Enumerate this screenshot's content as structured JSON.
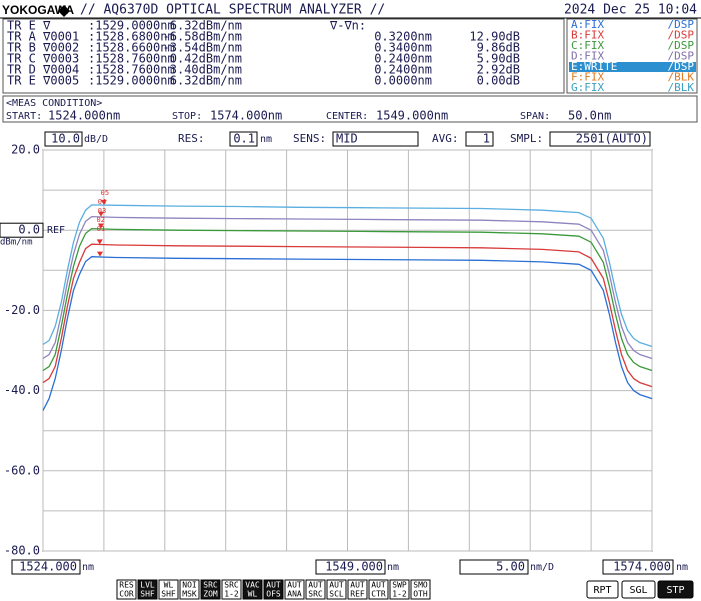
{
  "header": {
    "brand": "YOKOGAWA",
    "title": "// AQ6370D OPTICAL SPECTRUM ANALYZER //",
    "datetime": "2024 Dec 25 10:04"
  },
  "marker_table": {
    "active": [
      "TR E ∇",
      ":1529.0000nm",
      "6.32dBm/nm",
      "∇-∇n:"
    ],
    "rows": [
      [
        "TR A ∇0001",
        ":1528.6800nm",
        "-6.58dBm/nm",
        "0.3200nm",
        "12.90dB"
      ],
      [
        "TR B ∇0002",
        ":1528.6600nm",
        "-3.54dBm/nm",
        "0.3400nm",
        "9.86dB"
      ],
      [
        "TR C ∇0003",
        ":1528.7600nm",
        "0.42dBm/nm",
        "0.2400nm",
        "5.90dB"
      ],
      [
        "TR D ∇0004",
        ":1528.7600nm",
        "3.40dBm/nm",
        "0.2400nm",
        "2.92dB"
      ],
      [
        "TR E ∇0005",
        ":1529.0000nm",
        "6.32dBm/nm",
        "0.0000nm",
        "0.00dB"
      ]
    ]
  },
  "trace_status": [
    {
      "trace": "A:FIX",
      "mode": "/DSP",
      "color": "#2a6fd6"
    },
    {
      "trace": "B:FIX",
      "mode": "/DSP",
      "color": "#d93a3a"
    },
    {
      "trace": "C:FIX",
      "mode": "/DSP",
      "color": "#3a9a3a"
    },
    {
      "trace": "D:FIX",
      "mode": "/DSP",
      "color": "#7f6fa8"
    },
    {
      "trace": "E:WRITE",
      "mode": "/DSP",
      "color": "#2b8fd0",
      "active": true
    },
    {
      "trace": "F:FIX",
      "mode": "/BLK",
      "color": "#e07a20"
    },
    {
      "trace": "G:FIX",
      "mode": "/BLK",
      "color": "#3aa0c0"
    }
  ],
  "meas_condition": {
    "title": "<MEAS CONDITION>",
    "start_label": "START:",
    "start": "1524.000nm",
    "stop_label": "STOP:",
    "stop": "1574.000nm",
    "center_label": "CENTER:",
    "center": "1549.000nm",
    "span_label": "SPAN:",
    "span": "50.0nm"
  },
  "settings": {
    "scale": "10.0",
    "scale_unit": "dB/D",
    "res_label": "RES:",
    "res": "0.1",
    "res_unit": "nm",
    "sens_label": "SENS:",
    "sens": "MID",
    "avg_label": "AVG:",
    "avg": "1",
    "smpl_label": "SMPL:",
    "smpl": "2501(AUTO)"
  },
  "chart_data": {
    "type": "line",
    "ref_label": "REF",
    "y_unit": "dBm/nm",
    "xlim": [
      1524,
      1574
    ],
    "ylim": [
      -80,
      20
    ],
    "yticks": [
      {
        "value": 20,
        "label": "20.0"
      },
      {
        "value": 0,
        "label": "0.0"
      },
      {
        "value": -20,
        "label": "-20.0"
      },
      {
        "value": -40,
        "label": "-40.0"
      },
      {
        "value": -60,
        "label": "-60.0"
      },
      {
        "value": -80,
        "label": "-80.0"
      }
    ],
    "ygrid": [
      10,
      -10,
      -30,
      -50,
      -70
    ],
    "xticks": [
      {
        "value": 1524,
        "label": "1524.000"
      },
      {
        "value": 1549,
        "label": "1549.000"
      },
      {
        "value": 1574,
        "label": "1574.000"
      }
    ],
    "xgrid": [
      1529,
      1534,
      1539,
      1544,
      1554,
      1559,
      1564,
      1569
    ],
    "x_unit": "nm",
    "x_div": "5.00",
    "x_div_unit": "nm/D",
    "grid": true,
    "x": [
      1524,
      1524.5,
      1525,
      1525.5,
      1526,
      1526.5,
      1527,
      1527.5,
      1528,
      1530,
      1535,
      1540,
      1545,
      1550,
      1555,
      1560,
      1565,
      1568,
      1569,
      1570,
      1570.5,
      1571,
      1571.5,
      1572,
      1572.5,
      1573,
      1574
    ],
    "series": [
      {
        "color": "#2a6fd6",
        "values": [
          -45,
          -42,
          -37,
          -30,
          -22,
          -15,
          -11,
          -7.8,
          -6.6,
          -6.8,
          -7.0,
          -7.1,
          -7.2,
          -7.3,
          -7.4,
          -7.5,
          -7.9,
          -8.5,
          -10,
          -15,
          -21,
          -28,
          -34,
          -38,
          -40,
          -41,
          -42
        ]
      },
      {
        "color": "#d93a3a",
        "values": [
          -38,
          -37,
          -34,
          -27,
          -19,
          -12,
          -8,
          -4.6,
          -3.5,
          -3.7,
          -3.9,
          -4.0,
          -4.1,
          -4.2,
          -4.3,
          -4.4,
          -4.8,
          -5.4,
          -7,
          -12,
          -18,
          -25,
          -31,
          -35,
          -37,
          -38,
          -39
        ]
      },
      {
        "color": "#3a9a3a",
        "values": [
          -35,
          -34,
          -31,
          -24,
          -16,
          -9,
          -4,
          -0.8,
          0.4,
          0.2,
          0.0,
          -0.1,
          -0.2,
          -0.3,
          -0.4,
          -0.5,
          -0.9,
          -1.5,
          -3,
          -8,
          -14,
          -21,
          -27,
          -31,
          -33,
          -34,
          -35
        ]
      },
      {
        "color": "#8f84bf",
        "values": [
          -32,
          -31,
          -28,
          -21,
          -13,
          -6,
          -1,
          2.2,
          3.4,
          3.2,
          3.0,
          2.9,
          2.8,
          2.7,
          2.6,
          2.5,
          2.1,
          1.5,
          0,
          -5,
          -11,
          -18,
          -24,
          -28,
          -30,
          -31,
          -32
        ]
      },
      {
        "color": "#5aaee0",
        "values": [
          -28.5,
          -27.5,
          -24,
          -18,
          -10,
          -3,
          2,
          5,
          6.3,
          6.2,
          6.0,
          5.9,
          5.7,
          5.6,
          5.5,
          5.4,
          5.0,
          4.4,
          3.0,
          -2,
          -8,
          -15,
          -21,
          -25,
          -27,
          -28,
          -29
        ]
      }
    ],
    "markers": [
      {
        "label": "05",
        "x": 1529.0,
        "y": 6.32
      },
      {
        "label": "04",
        "x": 1528.76,
        "y": 3.4
      },
      {
        "label": "03",
        "x": 1528.76,
        "y": 0.42
      },
      {
        "label": "02",
        "x": 1528.66,
        "y": -3.54
      },
      {
        "label": "01",
        "x": 1528.68,
        "y": -6.58
      }
    ]
  },
  "softkeys": [
    {
      "top": "RES",
      "bottom": "COR"
    },
    {
      "top": "LVL",
      "bottom": "SHF",
      "on": true
    },
    {
      "top": "WL",
      "bottom": "SHF"
    },
    {
      "top": "NOI",
      "bottom": "MSK"
    },
    {
      "top": "SRC",
      "bottom": "ZOM",
      "on": true
    },
    {
      "top": "SRC",
      "bottom": "1-2"
    },
    {
      "top": "VAC",
      "bottom": "WL",
      "on": true
    },
    {
      "top": "AUT",
      "bottom": "OFS",
      "on": true
    },
    {
      "top": "AUT",
      "bottom": "ANA"
    },
    {
      "top": "AUT",
      "bottom": "SRC"
    },
    {
      "top": "AUT",
      "bottom": "SCL"
    },
    {
      "top": "AUT",
      "bottom": "REF"
    },
    {
      "top": "AUT",
      "bottom": "CTR"
    },
    {
      "top": "SWP",
      "bottom": "1-2"
    },
    {
      "top": "SMO",
      "bottom": "OTH"
    }
  ],
  "run_keys": [
    {
      "label": "RPT"
    },
    {
      "label": "SGL"
    },
    {
      "label": "STP",
      "on": true
    }
  ]
}
